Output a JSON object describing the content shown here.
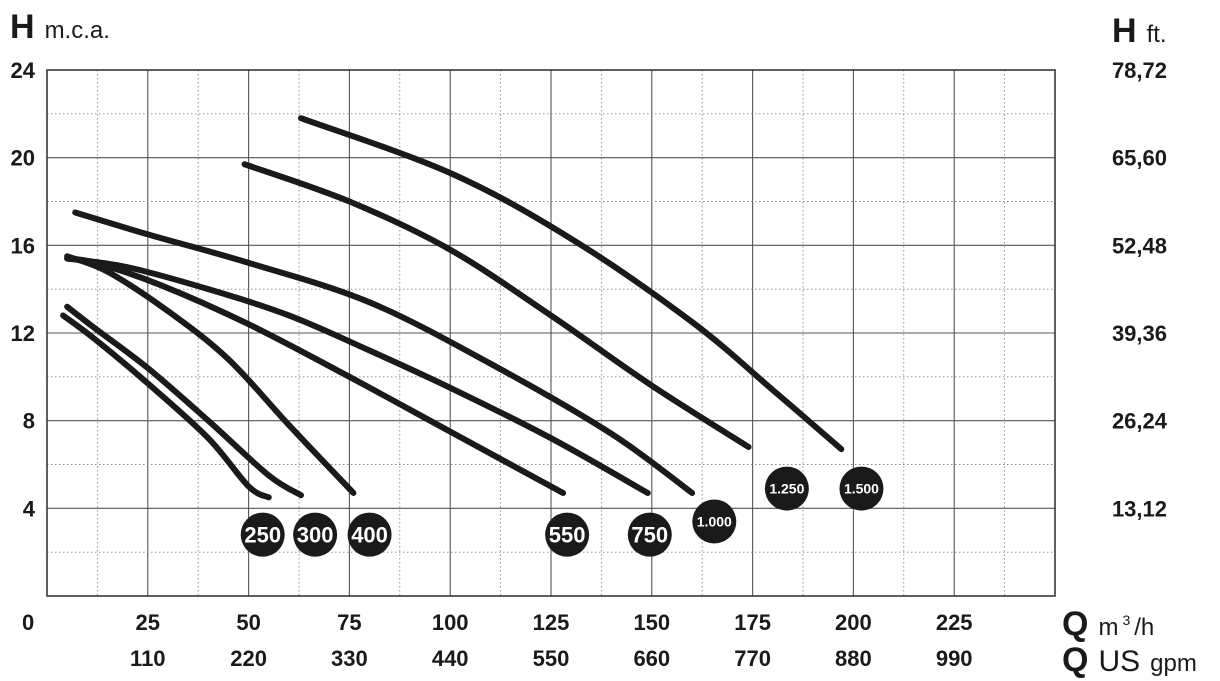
{
  "chart_data": {
    "type": "line",
    "left_axis": {
      "symbol": "H",
      "unit": "m.c.a.",
      "ticks": [
        "4",
        "8",
        "12",
        "16",
        "20",
        "24"
      ],
      "ylim": [
        0,
        24
      ]
    },
    "right_axis": {
      "symbol": "H",
      "unit": "ft.",
      "ticks": [
        "13,12",
        "26,24",
        "39,36",
        "52,48",
        "65,60",
        "78,72"
      ]
    },
    "bottom_axis": {
      "origin_label": "0",
      "row1": {
        "symbol": "Q",
        "unit_base": "m",
        "unit_sup": "3",
        "unit_rest": "/h",
        "ticks": [
          "25",
          "50",
          "75",
          "100",
          "125",
          "150",
          "175",
          "200",
          "225"
        ]
      },
      "row2": {
        "symbol": "Q",
        "unit_main": "US",
        "unit_small": "gpm",
        "ticks": [
          "110",
          "220",
          "330",
          "440",
          "550",
          "660",
          "770",
          "880",
          "990"
        ]
      },
      "xlim": [
        0,
        250
      ]
    },
    "grid": true,
    "series": [
      {
        "name": "250",
        "x": [
          4,
          12,
          25,
          40,
          50,
          55
        ],
        "y": [
          12.8,
          11.7,
          9.7,
          7.2,
          5.0,
          4.5
        ]
      },
      {
        "name": "300",
        "x": [
          5,
          12,
          25,
          40,
          55,
          63
        ],
        "y": [
          13.2,
          12.2,
          10.4,
          8.0,
          5.5,
          4.6
        ]
      },
      {
        "name": "400",
        "x": [
          5,
          15,
          30,
          45,
          60,
          76
        ],
        "y": [
          15.5,
          14.8,
          13.0,
          10.8,
          7.8,
          4.7
        ]
      },
      {
        "name": "550",
        "x": [
          5,
          12,
          28,
          50,
          75,
          100,
          128
        ],
        "y": [
          15.4,
          15.2,
          14.2,
          12.4,
          10.0,
          7.5,
          4.7
        ]
      },
      {
        "name": "750",
        "x": [
          5,
          20,
          40,
          60,
          80,
          100,
          125,
          149
        ],
        "y": [
          15.4,
          15.0,
          14.0,
          12.8,
          11.2,
          9.5,
          7.2,
          4.7
        ]
      },
      {
        "name": "1.000",
        "x": [
          7,
          25,
          50,
          80,
          110,
          140,
          160
        ],
        "y": [
          17.5,
          16.5,
          15.2,
          13.4,
          10.6,
          7.4,
          4.7
        ]
      },
      {
        "name": "1.250",
        "x": [
          49,
          75,
          100,
          125,
          150,
          174
        ],
        "y": [
          19.7,
          18.0,
          15.8,
          12.8,
          9.6,
          6.8
        ]
      },
      {
        "name": "1.500",
        "x": [
          63,
          100,
          130,
          160,
          180,
          197
        ],
        "y": [
          21.8,
          19.3,
          16.3,
          12.5,
          9.4,
          6.7
        ]
      }
    ],
    "badges": [
      {
        "label": "250",
        "x": 53.5,
        "y": 2.8
      },
      {
        "label": "300",
        "x": 66.5,
        "y": 2.8
      },
      {
        "label": "400",
        "x": 80.0,
        "y": 2.8
      },
      {
        "label": "550",
        "x": 129.0,
        "y": 2.8
      },
      {
        "label": "750",
        "x": 149.5,
        "y": 2.8
      },
      {
        "label": "1.000",
        "x": 165.5,
        "y": 3.4
      },
      {
        "label": "1.250",
        "x": 183.5,
        "y": 4.9
      },
      {
        "label": "1.500",
        "x": 202.0,
        "y": 4.9
      }
    ]
  }
}
